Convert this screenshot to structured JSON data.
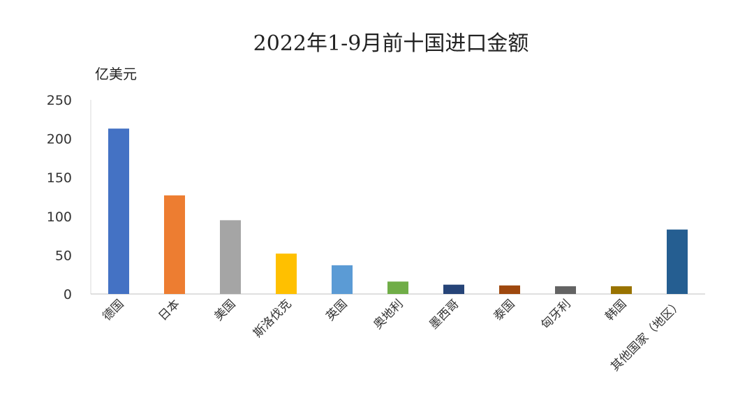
{
  "chart_data": {
    "type": "bar",
    "title": "2022年1-9月前十国进口金额",
    "ylabel": "亿美元",
    "xlabel": "",
    "ylim": [
      0,
      250
    ],
    "yticks": [
      0,
      50,
      100,
      150,
      200,
      250
    ],
    "grid": false,
    "legend": "none",
    "categories": [
      "德国",
      "日本",
      "美国",
      "斯洛伐克",
      "英国",
      "奥地利",
      "墨西哥",
      "泰国",
      "匈牙利",
      "韩国",
      "其他国家（地区）"
    ],
    "values": [
      213,
      127,
      95,
      52,
      37,
      16,
      12,
      11,
      10,
      10,
      83
    ],
    "colors": [
      "#4472C4",
      "#ED7D31",
      "#A5A5A5",
      "#FFC000",
      "#5B9BD5",
      "#70AD47",
      "#264478",
      "#9E480E",
      "#636363",
      "#997300",
      "#255E91"
    ]
  }
}
